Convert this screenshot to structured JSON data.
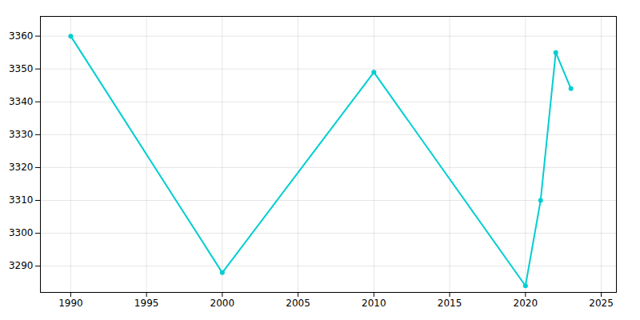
{
  "chart_data": {
    "type": "line",
    "x": [
      1990,
      2000,
      2010,
      2020,
      2021,
      2022,
      2023
    ],
    "values": [
      3360,
      3288,
      3349,
      3284,
      3310,
      3355,
      3344
    ],
    "color": "#00CED1",
    "marker": "circle",
    "xlim": [
      1988,
      2026
    ],
    "ylim": [
      3282,
      3366
    ],
    "xticks": [
      1990,
      1995,
      2000,
      2005,
      2010,
      2015,
      2020,
      2025
    ],
    "yticks": [
      3290,
      3300,
      3310,
      3320,
      3330,
      3340,
      3350,
      3360
    ],
    "grid": true
  }
}
